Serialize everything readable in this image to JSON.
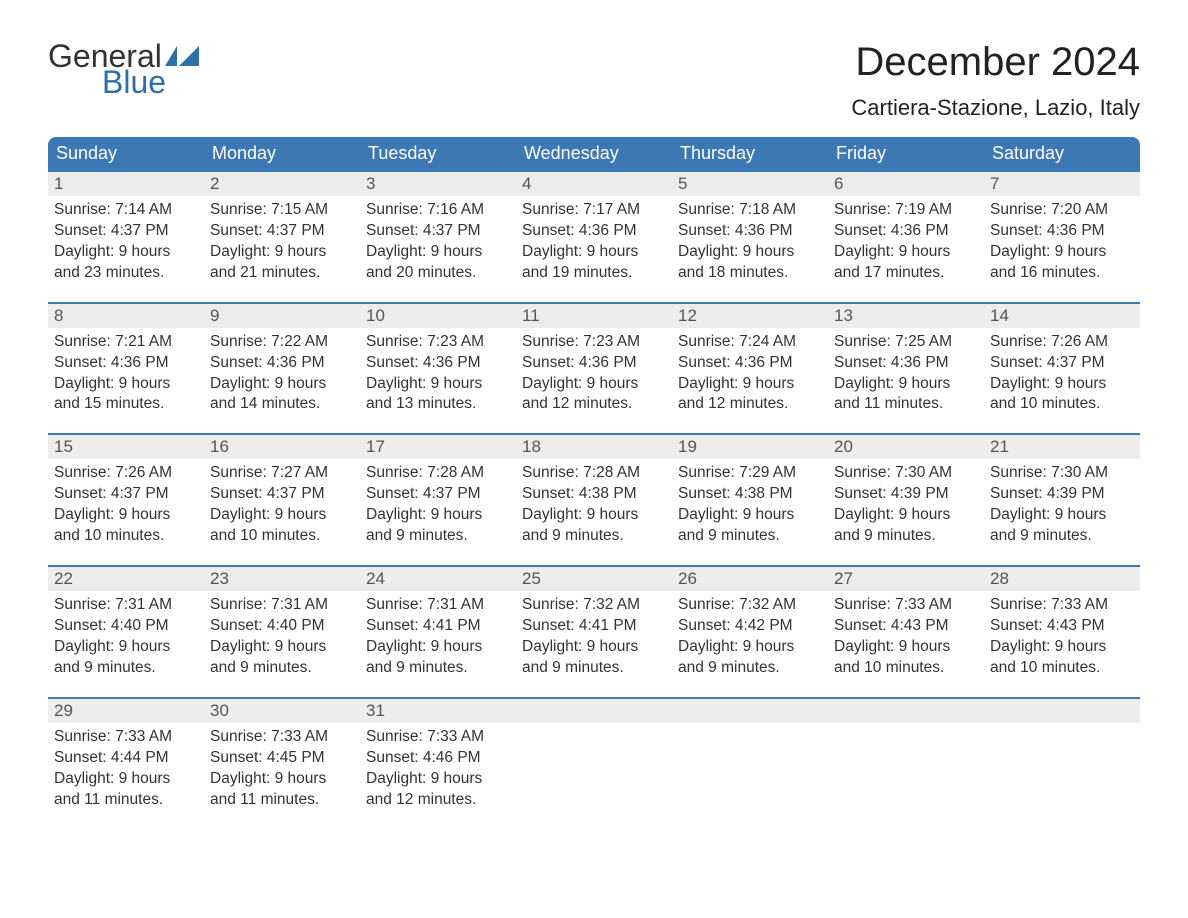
{
  "logo": {
    "text_general": "General",
    "text_blue": "Blue"
  },
  "title": "December 2024",
  "location": "Cartiera-Stazione, Lazio, Italy",
  "colors": {
    "header_bg": "#3c78b4",
    "header_text": "#ffffff",
    "accent_border": "#3c78b4",
    "daynum_bg": "#ececec",
    "body_text": "#333333",
    "logo_blue": "#2f6fa7",
    "logo_dark": "#333333",
    "background": "#ffffff"
  },
  "day_headers": [
    "Sunday",
    "Monday",
    "Tuesday",
    "Wednesday",
    "Thursday",
    "Friday",
    "Saturday"
  ],
  "weeks": [
    [
      {
        "n": "1",
        "sunrise": "7:14 AM",
        "sunset": "4:37 PM",
        "dl1": "9 hours",
        "dl2": "and 23 minutes."
      },
      {
        "n": "2",
        "sunrise": "7:15 AM",
        "sunset": "4:37 PM",
        "dl1": "9 hours",
        "dl2": "and 21 minutes."
      },
      {
        "n": "3",
        "sunrise": "7:16 AM",
        "sunset": "4:37 PM",
        "dl1": "9 hours",
        "dl2": "and 20 minutes."
      },
      {
        "n": "4",
        "sunrise": "7:17 AM",
        "sunset": "4:36 PM",
        "dl1": "9 hours",
        "dl2": "and 19 minutes."
      },
      {
        "n": "5",
        "sunrise": "7:18 AM",
        "sunset": "4:36 PM",
        "dl1": "9 hours",
        "dl2": "and 18 minutes."
      },
      {
        "n": "6",
        "sunrise": "7:19 AM",
        "sunset": "4:36 PM",
        "dl1": "9 hours",
        "dl2": "and 17 minutes."
      },
      {
        "n": "7",
        "sunrise": "7:20 AM",
        "sunset": "4:36 PM",
        "dl1": "9 hours",
        "dl2": "and 16 minutes."
      }
    ],
    [
      {
        "n": "8",
        "sunrise": "7:21 AM",
        "sunset": "4:36 PM",
        "dl1": "9 hours",
        "dl2": "and 15 minutes."
      },
      {
        "n": "9",
        "sunrise": "7:22 AM",
        "sunset": "4:36 PM",
        "dl1": "9 hours",
        "dl2": "and 14 minutes."
      },
      {
        "n": "10",
        "sunrise": "7:23 AM",
        "sunset": "4:36 PM",
        "dl1": "9 hours",
        "dl2": "and 13 minutes."
      },
      {
        "n": "11",
        "sunrise": "7:23 AM",
        "sunset": "4:36 PM",
        "dl1": "9 hours",
        "dl2": "and 12 minutes."
      },
      {
        "n": "12",
        "sunrise": "7:24 AM",
        "sunset": "4:36 PM",
        "dl1": "9 hours",
        "dl2": "and 12 minutes."
      },
      {
        "n": "13",
        "sunrise": "7:25 AM",
        "sunset": "4:36 PM",
        "dl1": "9 hours",
        "dl2": "and 11 minutes."
      },
      {
        "n": "14",
        "sunrise": "7:26 AM",
        "sunset": "4:37 PM",
        "dl1": "9 hours",
        "dl2": "and 10 minutes."
      }
    ],
    [
      {
        "n": "15",
        "sunrise": "7:26 AM",
        "sunset": "4:37 PM",
        "dl1": "9 hours",
        "dl2": "and 10 minutes."
      },
      {
        "n": "16",
        "sunrise": "7:27 AM",
        "sunset": "4:37 PM",
        "dl1": "9 hours",
        "dl2": "and 10 minutes."
      },
      {
        "n": "17",
        "sunrise": "7:28 AM",
        "sunset": "4:37 PM",
        "dl1": "9 hours",
        "dl2": "and 9 minutes."
      },
      {
        "n": "18",
        "sunrise": "7:28 AM",
        "sunset": "4:38 PM",
        "dl1": "9 hours",
        "dl2": "and 9 minutes."
      },
      {
        "n": "19",
        "sunrise": "7:29 AM",
        "sunset": "4:38 PM",
        "dl1": "9 hours",
        "dl2": "and 9 minutes."
      },
      {
        "n": "20",
        "sunrise": "7:30 AM",
        "sunset": "4:39 PM",
        "dl1": "9 hours",
        "dl2": "and 9 minutes."
      },
      {
        "n": "21",
        "sunrise": "7:30 AM",
        "sunset": "4:39 PM",
        "dl1": "9 hours",
        "dl2": "and 9 minutes."
      }
    ],
    [
      {
        "n": "22",
        "sunrise": "7:31 AM",
        "sunset": "4:40 PM",
        "dl1": "9 hours",
        "dl2": "and 9 minutes."
      },
      {
        "n": "23",
        "sunrise": "7:31 AM",
        "sunset": "4:40 PM",
        "dl1": "9 hours",
        "dl2": "and 9 minutes."
      },
      {
        "n": "24",
        "sunrise": "7:31 AM",
        "sunset": "4:41 PM",
        "dl1": "9 hours",
        "dl2": "and 9 minutes."
      },
      {
        "n": "25",
        "sunrise": "7:32 AM",
        "sunset": "4:41 PM",
        "dl1": "9 hours",
        "dl2": "and 9 minutes."
      },
      {
        "n": "26",
        "sunrise": "7:32 AM",
        "sunset": "4:42 PM",
        "dl1": "9 hours",
        "dl2": "and 9 minutes."
      },
      {
        "n": "27",
        "sunrise": "7:33 AM",
        "sunset": "4:43 PM",
        "dl1": "9 hours",
        "dl2": "and 10 minutes."
      },
      {
        "n": "28",
        "sunrise": "7:33 AM",
        "sunset": "4:43 PM",
        "dl1": "9 hours",
        "dl2": "and 10 minutes."
      }
    ],
    [
      {
        "n": "29",
        "sunrise": "7:33 AM",
        "sunset": "4:44 PM",
        "dl1": "9 hours",
        "dl2": "and 11 minutes."
      },
      {
        "n": "30",
        "sunrise": "7:33 AM",
        "sunset": "4:45 PM",
        "dl1": "9 hours",
        "dl2": "and 11 minutes."
      },
      {
        "n": "31",
        "sunrise": "7:33 AM",
        "sunset": "4:46 PM",
        "dl1": "9 hours",
        "dl2": "and 12 minutes."
      },
      null,
      null,
      null,
      null
    ]
  ],
  "labels": {
    "sunrise_prefix": "Sunrise: ",
    "sunset_prefix": "Sunset: ",
    "daylight_prefix": "Daylight: "
  }
}
